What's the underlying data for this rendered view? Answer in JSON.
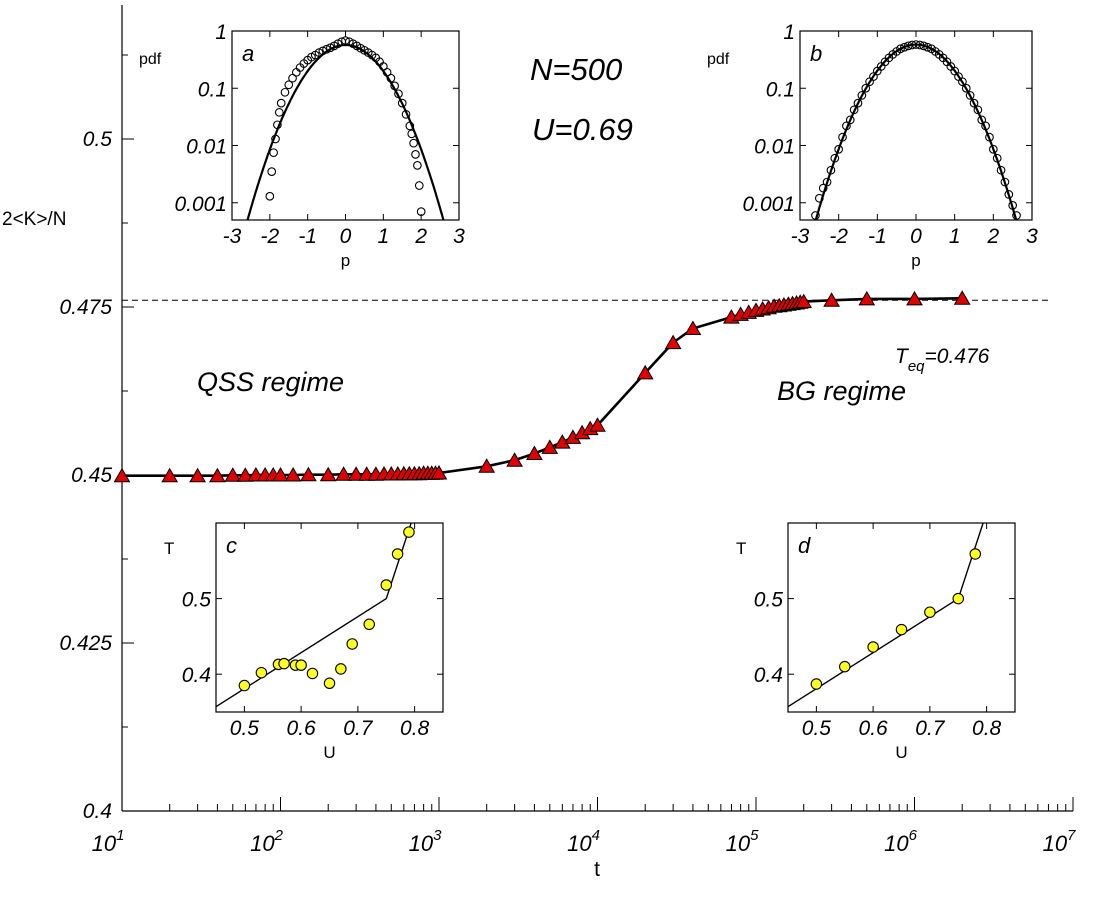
{
  "chart_data": [
    {
      "id": "main",
      "type": "line",
      "xlabel": "t",
      "ylabel": "2<K>/N",
      "xscale": "log",
      "xlim": [
        10,
        10000000
      ],
      "ylim": [
        0.4,
        0.5
      ],
      "xticks": [
        {
          "v": 10,
          "b": "10",
          "e": "1"
        },
        {
          "v": 100,
          "b": "10",
          "e": "2"
        },
        {
          "v": 1000,
          "b": "10",
          "e": "3"
        },
        {
          "v": 10000,
          "b": "10",
          "e": "4"
        },
        {
          "v": 100000,
          "b": "10",
          "e": "5"
        },
        {
          "v": 1000000,
          "b": "10",
          "e": "6"
        },
        {
          "v": 10000000,
          "b": "10",
          "e": "7"
        }
      ],
      "yticks": [
        {
          "v": 0.4,
          "label": "0.4"
        },
        {
          "v": 0.425,
          "label": "0.425"
        },
        {
          "v": 0.45,
          "label": "0.45"
        },
        {
          "v": 0.475,
          "label": "0.475"
        },
        {
          "v": 0.5,
          "label": "0.5"
        }
      ],
      "reference_line": {
        "y": 0.476,
        "style": "dashed"
      },
      "annotations": {
        "teq_base": "T",
        "teq_sub": "eq",
        "teq_value": "=0.476",
        "qss": "QSS regime",
        "bg": "BG regime",
        "n_label": "N=500",
        "u_label": "U=0.69"
      },
      "series": [
        {
          "marker": "triangle",
          "color": "#e00000",
          "x": [
            10,
            20,
            30,
            40,
            50,
            60,
            70,
            80,
            90,
            100,
            120,
            150,
            200,
            250,
            300,
            350,
            400,
            450,
            500,
            550,
            600,
            650,
            700,
            750,
            800,
            850,
            900,
            950,
            1000,
            2000,
            3000,
            4000,
            5000,
            6000,
            7000,
            8000,
            9000,
            10000,
            20000,
            30000,
            40000,
            70000,
            80000,
            90000,
            100000,
            110000,
            120000,
            130000,
            140000,
            150000,
            160000,
            170000,
            180000,
            190000,
            200000,
            300000,
            500000,
            1000000,
            2000000
          ],
          "y": [
            0.4499,
            0.4499,
            0.4499,
            0.4499,
            0.44995,
            0.44995,
            0.45,
            0.45,
            0.45,
            0.45,
            0.45,
            0.45005,
            0.45005,
            0.4501,
            0.4501,
            0.4501,
            0.4501,
            0.45015,
            0.45015,
            0.45015,
            0.4502,
            0.4502,
            0.4502,
            0.4502,
            0.45025,
            0.45025,
            0.45025,
            0.45025,
            0.4503,
            0.4513,
            0.4522,
            0.4532,
            0.4541,
            0.4549,
            0.4556,
            0.4563,
            0.4569,
            0.4574,
            0.4652,
            0.4697,
            0.4718,
            0.4735,
            0.4739,
            0.4742,
            0.4745,
            0.4747,
            0.4749,
            0.4751,
            0.4752,
            0.4753,
            0.4754,
            0.4755,
            0.4756,
            0.4757,
            0.4758,
            0.476,
            0.4762,
            0.4762,
            0.4763
          ]
        }
      ]
    },
    {
      "id": "a",
      "type": "scatter",
      "panel_label": "a",
      "xlabel": "p",
      "ylabel": "pdf",
      "yscale": "log",
      "xlim": [
        -3,
        3
      ],
      "ylim": [
        0.0005,
        1
      ],
      "xticks": [
        -3,
        -2,
        -1,
        0,
        1,
        2,
        3
      ],
      "yticks": [
        {
          "v": 1,
          "label": "1"
        },
        {
          "v": 0.1,
          "label": "0.1"
        },
        {
          "v": 0.01,
          "label": "0.01"
        },
        {
          "v": 0.001,
          "label": "0.001"
        }
      ],
      "curve_kind": "gauss",
      "curve": {
        "amp": 0.57,
        "sigma": 0.69
      },
      "points_x": [
        -2.0,
        -1.95,
        -1.9,
        -1.85,
        -1.8,
        -1.75,
        -1.7,
        -1.6,
        -1.5,
        -1.4,
        -1.3,
        -1.2,
        -1.1,
        -1.0,
        -0.9,
        -0.8,
        -0.7,
        -0.6,
        -0.5,
        -0.4,
        -0.3,
        -0.2,
        -0.1,
        0.0,
        0.1,
        0.2,
        0.3,
        0.4,
        0.5,
        0.6,
        0.7,
        0.8,
        0.9,
        1.0,
        1.1,
        1.2,
        1.3,
        1.4,
        1.5,
        1.6,
        1.7,
        1.75,
        1.8,
        1.85,
        1.9,
        1.95,
        2.0
      ],
      "points_y": [
        0.0013,
        0.0035,
        0.0075,
        0.013,
        0.023,
        0.038,
        0.055,
        0.085,
        0.115,
        0.15,
        0.19,
        0.23,
        0.27,
        0.31,
        0.35,
        0.38,
        0.42,
        0.45,
        0.48,
        0.51,
        0.55,
        0.6,
        0.65,
        0.68,
        0.65,
        0.6,
        0.55,
        0.5,
        0.46,
        0.42,
        0.38,
        0.34,
        0.29,
        0.24,
        0.19,
        0.15,
        0.11,
        0.08,
        0.055,
        0.035,
        0.022,
        0.016,
        0.011,
        0.007,
        0.0045,
        0.002,
        0.0007
      ]
    },
    {
      "id": "b",
      "type": "scatter",
      "panel_label": "b",
      "xlabel": "p",
      "ylabel": "pdf",
      "yscale": "log",
      "xlim": [
        -3,
        3
      ],
      "ylim": [
        0.0005,
        1
      ],
      "xticks": [
        -3,
        -2,
        -1,
        0,
        1,
        2,
        3
      ],
      "yticks": [
        {
          "v": 1,
          "label": "1"
        },
        {
          "v": 0.1,
          "label": "0.1"
        },
        {
          "v": 0.01,
          "label": "0.01"
        },
        {
          "v": 0.001,
          "label": "0.001"
        }
      ],
      "curve_kind": "gauss",
      "curve": {
        "amp": 0.578,
        "sigma": 0.69
      },
      "points_x": [
        -2.6,
        -2.5,
        -2.4,
        -2.3,
        -2.2,
        -2.1,
        -2.0,
        -1.9,
        -1.8,
        -1.7,
        -1.6,
        -1.5,
        -1.4,
        -1.3,
        -1.2,
        -1.1,
        -1.0,
        -0.9,
        -0.8,
        -0.7,
        -0.6,
        -0.5,
        -0.4,
        -0.3,
        -0.2,
        -0.1,
        0.0,
        0.1,
        0.2,
        0.3,
        0.4,
        0.5,
        0.6,
        0.7,
        0.8,
        0.9,
        1.0,
        1.1,
        1.2,
        1.3,
        1.4,
        1.5,
        1.6,
        1.7,
        1.8,
        1.9,
        2.0,
        2.1,
        2.2,
        2.3,
        2.4,
        2.5,
        2.6
      ],
      "points_y": [
        0.0006,
        0.0012,
        0.0018,
        0.0023,
        0.0037,
        0.006,
        0.0086,
        0.014,
        0.022,
        0.028,
        0.042,
        0.055,
        0.075,
        0.1,
        0.13,
        0.16,
        0.2,
        0.24,
        0.29,
        0.34,
        0.39,
        0.44,
        0.49,
        0.52,
        0.55,
        0.57,
        0.58,
        0.57,
        0.55,
        0.52,
        0.49,
        0.44,
        0.39,
        0.34,
        0.29,
        0.24,
        0.2,
        0.16,
        0.13,
        0.1,
        0.075,
        0.055,
        0.042,
        0.028,
        0.022,
        0.014,
        0.0086,
        0.006,
        0.0037,
        0.0023,
        0.0014,
        0.0009,
        0.0006
      ]
    },
    {
      "id": "c",
      "type": "scatter",
      "panel_label": "c",
      "xlabel": "U",
      "ylabel": "T",
      "xlim": [
        0.45,
        0.85
      ],
      "ylim": [
        0.35,
        0.6
      ],
      "xticks": [
        0.5,
        0.6,
        0.7,
        0.8
      ],
      "yticks": [
        {
          "v": 0.4,
          "label": "0.4"
        },
        {
          "v": 0.5,
          "label": "0.5"
        }
      ],
      "curve_kind": "poly",
      "curve_x": [
        0.45,
        0.75,
        0.8
      ],
      "curve_y": [
        0.357,
        0.5,
        0.614
      ],
      "points_x": [
        0.5,
        0.53,
        0.56,
        0.57,
        0.59,
        0.6,
        0.62,
        0.65,
        0.67,
        0.69,
        0.72,
        0.75,
        0.77,
        0.79
      ],
      "points_y": [
        0.385,
        0.402,
        0.413,
        0.414,
        0.412,
        0.412,
        0.401,
        0.388,
        0.407,
        0.44,
        0.466,
        0.518,
        0.559,
        0.588
      ]
    },
    {
      "id": "d",
      "type": "scatter",
      "panel_label": "d",
      "xlabel": "U",
      "ylabel": "T",
      "xlim": [
        0.45,
        0.85
      ],
      "ylim": [
        0.35,
        0.6
      ],
      "xticks": [
        0.5,
        0.6,
        0.7,
        0.8
      ],
      "yticks": [
        {
          "v": 0.4,
          "label": "0.4"
        },
        {
          "v": 0.5,
          "label": "0.5"
        }
      ],
      "curve_kind": "poly",
      "curve_x": [
        0.45,
        0.75,
        0.8
      ],
      "curve_y": [
        0.357,
        0.5,
        0.614
      ],
      "points_x": [
        0.5,
        0.55,
        0.6,
        0.65,
        0.7,
        0.75,
        0.78
      ],
      "points_y": [
        0.387,
        0.41,
        0.436,
        0.459,
        0.482,
        0.5,
        0.559
      ]
    }
  ]
}
